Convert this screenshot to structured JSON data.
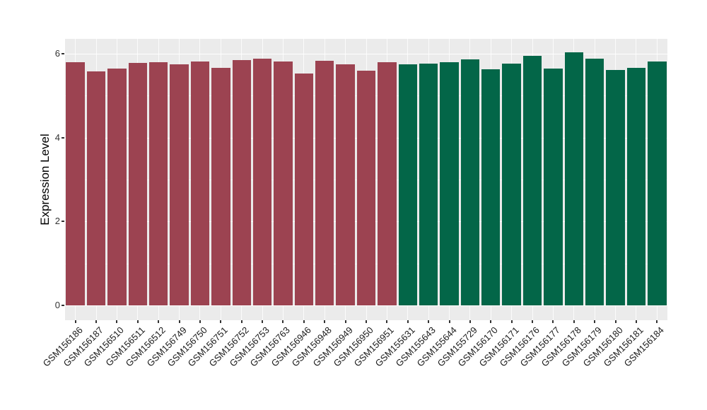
{
  "chart_data": {
    "type": "bar",
    "title": "",
    "xlabel": "",
    "ylabel": "Expression Level",
    "ylim": [
      -0.38,
      6.4
    ],
    "yticks": [
      0,
      2,
      4,
      6
    ],
    "yticks_minor": [
      1,
      3,
      5
    ],
    "grid": true,
    "legend_position": "none",
    "panel_bg": "#EBEBEB",
    "gridline_color": "#FFFFFF",
    "tick_color": "#333333",
    "group_colors": {
      "left_group": "#9C4351",
      "right_group": "#036648"
    },
    "categories": [
      "GSM156186",
      "GSM156187",
      "GSM156510",
      "GSM156511",
      "GSM156512",
      "GSM156749",
      "GSM156750",
      "GSM156751",
      "GSM156752",
      "GSM156753",
      "GSM156763",
      "GSM156946",
      "GSM156948",
      "GSM156949",
      "GSM156950",
      "GSM156951",
      "GSM155631",
      "GSM155643",
      "GSM155644",
      "GSM155729",
      "GSM156170",
      "GSM156171",
      "GSM156176",
      "GSM156177",
      "GSM156178",
      "GSM156179",
      "GSM156180",
      "GSM156181",
      "GSM156184"
    ],
    "values": [
      5.79,
      5.58,
      5.64,
      5.78,
      5.8,
      5.75,
      5.82,
      5.67,
      5.85,
      5.89,
      5.81,
      5.53,
      5.84,
      5.75,
      5.6,
      5.8,
      5.75,
      5.77,
      5.8,
      5.87,
      5.63,
      5.76,
      5.95,
      5.65,
      6.03,
      5.88,
      5.61,
      5.67,
      5.81
    ],
    "colors": [
      "#9C4351",
      "#9C4351",
      "#9C4351",
      "#9C4351",
      "#9C4351",
      "#9C4351",
      "#9C4351",
      "#9C4351",
      "#9C4351",
      "#9C4351",
      "#9C4351",
      "#9C4351",
      "#9C4351",
      "#9C4351",
      "#9C4351",
      "#9C4351",
      "#036648",
      "#036648",
      "#036648",
      "#036648",
      "#036648",
      "#036648",
      "#036648",
      "#036648",
      "#036648",
      "#036648",
      "#036648",
      "#036648",
      "#036648"
    ]
  }
}
